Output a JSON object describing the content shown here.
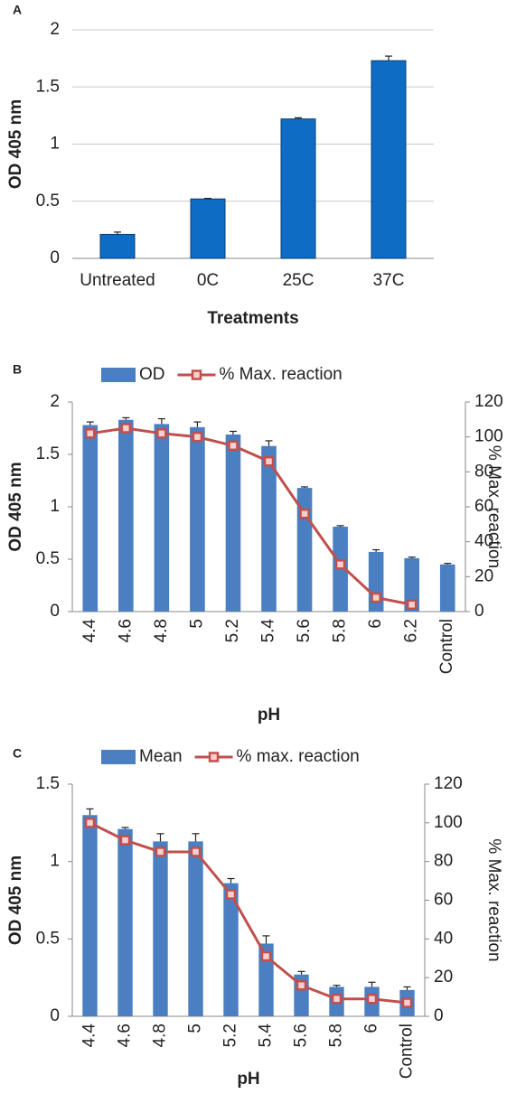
{
  "chart_data": [
    {
      "type": "bar",
      "panel": "A",
      "y_label": "OD 405 nm",
      "x_label": "Treatments",
      "categories": [
        "Untreated",
        "0C",
        "25C",
        "37C"
      ],
      "series": [
        {
          "name": null,
          "color": "#0e6cc4",
          "values": [
            0.21,
            0.52,
            1.22,
            1.73
          ],
          "errors": [
            0.02,
            0.005,
            0.01,
            0.04
          ]
        }
      ],
      "ylim": [
        0,
        2
      ],
      "yticks": [
        0,
        0.5,
        1,
        1.5,
        2
      ],
      "grid": true
    },
    {
      "type": "combo",
      "panel": "B",
      "y_label": "OD 405 nm",
      "y2_label": "% Max. reaction",
      "x_label": "pH",
      "categories": [
        "4.4",
        "4.6",
        "4.8",
        "5",
        "5.2",
        "5.4",
        "5.6",
        "5.8",
        "6",
        "6.2",
        "Control"
      ],
      "series": [
        {
          "name": "OD",
          "color": "#4a7fc1",
          "values": [
            1.78,
            1.83,
            1.79,
            1.76,
            1.69,
            1.58,
            1.18,
            0.81,
            0.57,
            0.51,
            0.45
          ],
          "errors": [
            0.03,
            0.02,
            0.05,
            0.05,
            0.03,
            0.05,
            0.01,
            0.01,
            0.02,
            0.01,
            0.01
          ]
        },
        {
          "name": "% Max. reaction",
          "color": "#c0504d",
          "axis": "y2",
          "values": [
            102,
            105,
            102,
            100,
            95,
            86,
            56,
            27,
            8,
            4,
            null
          ]
        }
      ],
      "ylim": [
        0,
        2
      ],
      "yticks": [
        0,
        0.5,
        1,
        1.5,
        2
      ],
      "y2lim": [
        0,
        120
      ],
      "y2ticks": [
        0,
        20,
        40,
        60,
        80,
        100,
        120
      ],
      "grid": false,
      "legend": "top"
    },
    {
      "type": "combo",
      "panel": "C",
      "y_label": "OD 405 nm",
      "y2_label": "% Max. reaction",
      "x_label": "pH",
      "categories": [
        "4.4",
        "4.6",
        "4.8",
        "5",
        "5.2",
        "5.4",
        "5.6",
        "5.8",
        "6",
        "Control"
      ],
      "series": [
        {
          "name": "Mean",
          "color": "#4a7fc1",
          "values": [
            1.3,
            1.21,
            1.13,
            1.13,
            0.86,
            0.47,
            0.27,
            0.19,
            0.19,
            0.17
          ],
          "errors": [
            0.04,
            0.01,
            0.05,
            0.05,
            0.03,
            0.05,
            0.02,
            0.01,
            0.03,
            0.02
          ]
        },
        {
          "name": "% max. reaction",
          "color": "#c0504d",
          "axis": "y2",
          "values": [
            100,
            91,
            85,
            85,
            63,
            31,
            16,
            9,
            9,
            7
          ]
        }
      ],
      "ylim": [
        0,
        1.5
      ],
      "yticks": [
        0,
        0.5,
        1,
        1.5
      ],
      "y2lim": [
        0,
        120
      ],
      "y2ticks": [
        0,
        20,
        40,
        60,
        80,
        100,
        120
      ],
      "grid": false,
      "legend": "top"
    }
  ]
}
